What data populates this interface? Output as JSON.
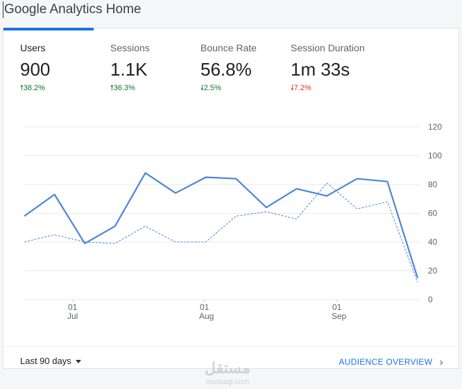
{
  "header": {
    "title": "Google Analytics Home"
  },
  "colors": {
    "accent": "#1a73e8",
    "line": "#4a86d8",
    "up": "#137333",
    "down": "#d93025",
    "grid": "#e8e8e8"
  },
  "metrics": [
    {
      "label": "Users",
      "value": "900",
      "change": "38.2%",
      "direction": "up",
      "active": true
    },
    {
      "label": "Sessions",
      "value": "1.1K",
      "change": "36.3%",
      "direction": "up"
    },
    {
      "label": "Bounce Rate",
      "value": "56.8%",
      "change": "2.5%",
      "direction": "down",
      "good": true
    },
    {
      "label": "Session Duration",
      "value": "1m 33s",
      "change": "7.2%",
      "direction": "down",
      "good": false
    }
  ],
  "chart_data": {
    "type": "line",
    "ylim": [
      0,
      120
    ],
    "y_ticks": [
      "0",
      "20",
      "40",
      "60",
      "80",
      "100",
      "120"
    ],
    "x_labels": [
      {
        "day": "01",
        "month": "Jul"
      },
      {
        "day": "01",
        "month": "Aug"
      },
      {
        "day": "01",
        "month": "Sep"
      }
    ],
    "grid": true,
    "series": [
      {
        "style": "solid",
        "values": [
          58,
          73,
          39,
          51,
          88,
          74,
          85,
          84,
          64,
          77,
          72,
          84,
          82,
          15
        ]
      },
      {
        "style": "dashed",
        "values": [
          40,
          45,
          40,
          39,
          51,
          40,
          40,
          58,
          61,
          56,
          81,
          63,
          68,
          12
        ]
      }
    ]
  },
  "footer": {
    "range_label": "Last 90 days",
    "link_label": "AUDIENCE OVERVIEW"
  },
  "watermark": {
    "text": "مستقل",
    "sub": "mostaql.com"
  }
}
